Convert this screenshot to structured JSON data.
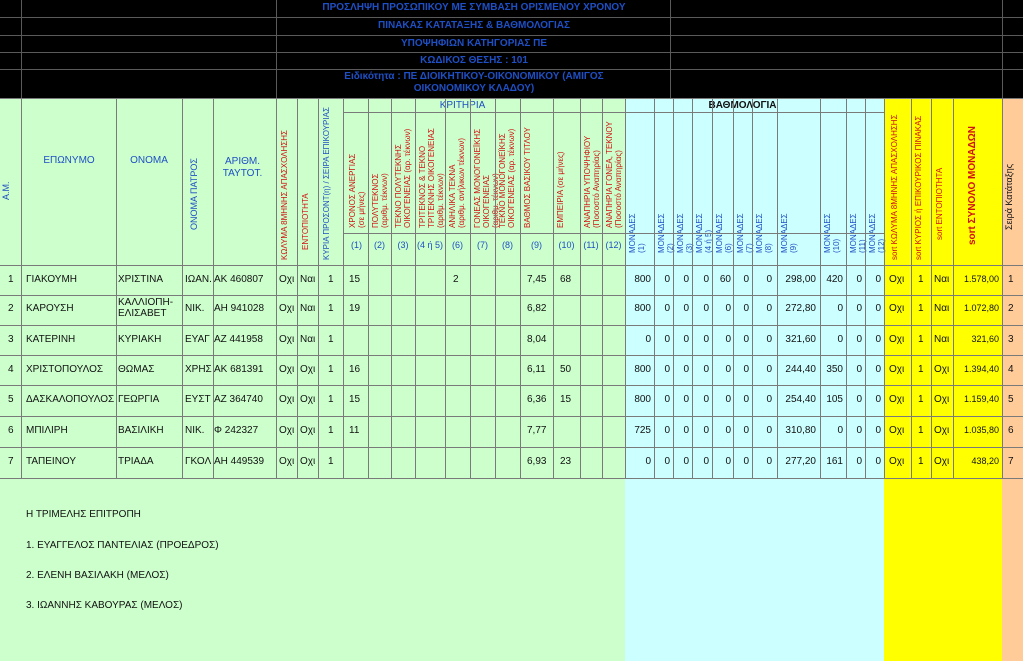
{
  "header": {
    "lines": [
      "ΠΡΟΣΛΗΨΗ ΠΡΟΣΩΠΙΚΟΥ ΜΕ ΣΥΜΒΑΣΗ ΟΡΙΣΜΕΝΟΥ ΧΡΟΝΟΥ",
      "ΠΙΝΑΚΑΣ ΚΑΤΑΤΑΞΗΣ & ΒΑΘΜΟΛΟΓΙΑΣ",
      "ΥΠΟΨΗΦΙΩΝ ΚΑΤΗΓΟΡΙΑΣ ΠΕ",
      "ΚΩΔΙΚΟΣ ΘΕΣΗΣ : 101",
      "Ειδικότητα : ΠΕ ΔΙΟΙΚΗΤΙΚΟΥ-ΟΙΚΟΝΟΜΙΚΟΥ (ΑΜΙΓΟΣ",
      "ΟΙΚΟΝΟΜΙΚΟΥ ΚΛΑΔΟΥ)"
    ]
  },
  "columns": {
    "am": "Α.Μ.",
    "surname": "ΕΠΩΝΥΜΟ",
    "name": "ΟΝΟΜΑ",
    "father": "ΟΝΟΜΑ ΠΑΤΡΟΣ",
    "id_line1": "ΑΡΙΘΜ.",
    "id_line2": "ΤΑΥΤΟΤ.",
    "exclusion": "ΚΩΛΥΜΑ 8ΜΗΝΗΣ ΑΠΑΣΧΟΛΗΣΗΣ",
    "locality": "ΕΝΤΟΠΙΟΤΗΤΑ",
    "main_qual": "ΚΥΡΙΑ ΠΡΟΣΟΝΤ(η) / ΣΕΙΡΑ ΕΠΙΚΟΥΡΙΑΣ",
    "criteria": "ΚΡΙΤΗΡΙΑ",
    "scoring": "ΒΑΘΜΟΛΟΓΙΑ",
    "criteria_cols": [
      "ΧΡΟΝΟΣ ΑΝΕΡΓΙΑΣ\n(σε μήνες)",
      "ΠΟΛΥΤΕΚΝΟΣ\n(αριθμ. τέκνων)",
      "ΤΕΚΝΟ ΠΟΛΥΤΕΚΝΗΣ\nΟΙΚΟΓΕΝΕΙΑΣ (αρ. τέκνων)",
      "ΤΡΙΤΕΚΝΟΣ & ΤΕΚΝΟ\nΤΡΙΤΕΚΝΗΣ ΟΙΚΟΓΕΝΕΙΑΣ\n(αριθμ. τέκνων)",
      "ΑΝΗΛΙΚΑ ΤΕΚΝΑ\n(αριθμ. ανήλικων τέκνων)",
      "ΓΟΝΕΑΣ ΜΟΝΟΓΟΝΕΪΚΗΣ\nΟΙΚΟΓΕΝΕΙΑΣ\n(αριθμ. τέκνων)",
      "ΤΕΚΝΟ ΜΟΝΟΓΟΝΕΪΚΗΣ\nΟΙΚΟΓΕΝΕΙΑΣ (αρ. τέκνων)",
      "ΒΑΘΜΟΣ ΒΑΣΙΚΟΥ ΤΙΤΛΟΥ",
      "ΕΜΠΕΙΡΙΑ (σε μήνες)",
      "ΑΝΑΠΗΡΙΑ ΥΠΟΨΗΦΙΟΥ\n(Ποσοστό Αναπηρίας)",
      "ΑΝΑΠΗΡΙΑ ΓΟΝΕΑ, ΤΕΚΝΟΥ\n(Ποσοστό Αναπηρίας)"
    ],
    "criteria_nums": [
      "(1)",
      "(2)",
      "(3)",
      "(4 ή 5)",
      "(6)",
      "(7)",
      "(8)",
      "(9)",
      "(10)",
      "(11)",
      "(12)"
    ],
    "score_cols": [
      "ΜΟΝΑΔΕΣ\n(1)",
      "ΜΟΝΑΔΕΣ\n(2)",
      "ΜΟΝΑΔΕΣ\n(3)",
      "ΜΟΝΑΔΕΣ\n(4 ή 5)",
      "ΜΟΝΑΔΕΣ\n(6)",
      "ΜΟΝΑΔΕΣ\n(7)",
      "ΜΟΝΑΔΕΣ\n(8)",
      "ΜΟΝΑΔΕΣ\n(9)",
      "ΜΟΝΑΔΕΣ\n(10)",
      "ΜΟΝΑΔΕΣ\n(11)",
      "ΜΟΝΑΔΕΣ\n(12)"
    ],
    "sort_exclusion": "sort ΚΩΛΥΜΑ 8ΜΗΝΗΣ ΑΠΑΣΧΟΛΗΣΗΣ",
    "sort_main": "sort ΚΥΡΙΟΣ ή ΕΠΙΚΟΥΡΙΚΟΣ ΠΙΝΑΚΑΣ",
    "sort_locality": "sort ΕΝΤΟΠΙΟΤΗΤΑ",
    "sort_total": "sort ΣΥΝΟΛΟ ΜΟΝΑΔΩΝ",
    "rank": "Σειρά Κατάταξης"
  },
  "rows": [
    {
      "am": "1",
      "surname": "ΓΙΑΚΟΥΜΗ",
      "name": "ΧΡΙΣΤΙΝΑ",
      "father": "ΙΩΑΝ.",
      "id": "ΑΚ 460807",
      "exclusion": "Οχι",
      "locality": "Ναι",
      "main": "1",
      "c1": "15",
      "c2": "",
      "c3": "",
      "c4": "",
      "c6": "2",
      "c7": "",
      "c8": "",
      "c9": "7,45",
      "c10": "68",
      "c11": "",
      "c12": "",
      "s1": "800",
      "s2": "0",
      "s3": "0",
      "s4": "0",
      "s6": "60",
      "s7": "0",
      "s8": "0",
      "s9": "298,00",
      "s10": "420",
      "s11": "0",
      "s12": "0",
      "x_excl": "Οχι",
      "x_main": "1",
      "x_loc": "Ναι",
      "total": "1.578,00",
      "rank": "1"
    },
    {
      "am": "2",
      "surname": "ΚΑΡΟΥΣΗ",
      "name": "ΚΑΛΛΙΟΠΗ-ΕΛΙΣΑΒΕΤ",
      "father": "ΝΙΚ.",
      "id": "ΑΗ 941028",
      "exclusion": "Οχι",
      "locality": "Ναι",
      "main": "1",
      "c1": "19",
      "c2": "",
      "c3": "",
      "c4": "",
      "c6": "",
      "c7": "",
      "c8": "",
      "c9": "6,82",
      "c10": "",
      "c11": "",
      "c12": "",
      "s1": "800",
      "s2": "0",
      "s3": "0",
      "s4": "0",
      "s6": "0",
      "s7": "0",
      "s8": "0",
      "s9": "272,80",
      "s10": "0",
      "s11": "0",
      "s12": "0",
      "x_excl": "Οχι",
      "x_main": "1",
      "x_loc": "Ναι",
      "total": "1.072,80",
      "rank": "2"
    },
    {
      "am": "3",
      "surname": "ΚΑΤΕΡΙΝΗ",
      "name": "ΚΥΡΙΑΚΗ",
      "father": "ΕΥΑΓ",
      "id": "ΑΖ 441958",
      "exclusion": "Οχι",
      "locality": "Ναι",
      "main": "1",
      "c1": "",
      "c2": "",
      "c3": "",
      "c4": "",
      "c6": "",
      "c7": "",
      "c8": "",
      "c9": "8,04",
      "c10": "",
      "c11": "",
      "c12": "",
      "s1": "0",
      "s2": "0",
      "s3": "0",
      "s4": "0",
      "s6": "0",
      "s7": "0",
      "s8": "0",
      "s9": "321,60",
      "s10": "0",
      "s11": "0",
      "s12": "0",
      "x_excl": "Οχι",
      "x_main": "1",
      "x_loc": "Ναι",
      "total": "321,60",
      "rank": "3"
    },
    {
      "am": "4",
      "surname": "ΧΡΙΣΤΟΠΟΥΛΟΣ",
      "name": "ΘΩΜΑΣ",
      "father": "ΧΡΗΣ",
      "id": "ΑΚ 681391",
      "exclusion": "Οχι",
      "locality": "Οχι",
      "main": "1",
      "c1": "16",
      "c2": "",
      "c3": "",
      "c4": "",
      "c6": "",
      "c7": "",
      "c8": "",
      "c9": "6,11",
      "c10": "50",
      "c11": "",
      "c12": "",
      "s1": "800",
      "s2": "0",
      "s3": "0",
      "s4": "0",
      "s6": "0",
      "s7": "0",
      "s8": "0",
      "s9": "244,40",
      "s10": "350",
      "s11": "0",
      "s12": "0",
      "x_excl": "Οχι",
      "x_main": "1",
      "x_loc": "Οχι",
      "total": "1.394,40",
      "rank": "4"
    },
    {
      "am": "5",
      "surname": "ΔΑΣΚΑΛΟΠΟΥΛΟΣ",
      "name": "ΓΕΩΡΓΙΑ",
      "father": "ΕΥΣΤ",
      "id": "ΑΖ 364740",
      "exclusion": "Οχι",
      "locality": "Οχι",
      "main": "1",
      "c1": "15",
      "c2": "",
      "c3": "",
      "c4": "",
      "c6": "",
      "c7": "",
      "c8": "",
      "c9": "6,36",
      "c10": "15",
      "c11": "",
      "c12": "",
      "s1": "800",
      "s2": "0",
      "s3": "0",
      "s4": "0",
      "s6": "0",
      "s7": "0",
      "s8": "0",
      "s9": "254,40",
      "s10": "105",
      "s11": "0",
      "s12": "0",
      "x_excl": "Οχι",
      "x_main": "1",
      "x_loc": "Οχι",
      "total": "1.159,40",
      "rank": "5"
    },
    {
      "am": "6",
      "surname": "ΜΠΙΛΙΡΗ",
      "name": "ΒΑΣΙΛΙΚΗ",
      "father": "ΝΙΚ.",
      "id": "Φ 242327",
      "exclusion": "Οχι",
      "locality": "Οχι",
      "main": "1",
      "c1": "11",
      "c2": "",
      "c3": "",
      "c4": "",
      "c6": "",
      "c7": "",
      "c8": "",
      "c9": "7,77",
      "c10": "",
      "c11": "",
      "c12": "",
      "s1": "725",
      "s2": "0",
      "s3": "0",
      "s4": "0",
      "s6": "0",
      "s7": "0",
      "s8": "0",
      "s9": "310,80",
      "s10": "0",
      "s11": "0",
      "s12": "0",
      "x_excl": "Οχι",
      "x_main": "1",
      "x_loc": "Οχι",
      "total": "1.035,80",
      "rank": "6"
    },
    {
      "am": "7",
      "surname": "ΤΑΠΕΙΝΟΥ",
      "name": "ΤΡΙΑΔΑ",
      "father": "ΓΚΟΛ",
      "id": "ΑΗ 449539",
      "exclusion": "Οχι",
      "locality": "Οχι",
      "main": "1",
      "c1": "",
      "c2": "",
      "c3": "",
      "c4": "",
      "c6": "",
      "c7": "",
      "c8": "",
      "c9": "6,93",
      "c10": "23",
      "c11": "",
      "c12": "",
      "s1": "0",
      "s2": "0",
      "s3": "0",
      "s4": "0",
      "s6": "0",
      "s7": "0",
      "s8": "0",
      "s9": "277,20",
      "s10": "161",
      "s11": "0",
      "s12": "0",
      "x_excl": "Οχι",
      "x_main": "1",
      "x_loc": "Οχι",
      "total": "438,20",
      "rank": "7"
    }
  ],
  "committee": {
    "title": "Η ΤΡΙΜΕΛΗΣ ΕΠΙΤΡΟΠΗ",
    "members": [
      "1. ΕΥΑΓΓΕΛΟΣ ΠΑΝΤΕΛΙΑΣ (ΠΡΟΕΔΡΟΣ)",
      "2. ΕΛΕΝΗ ΒΑΣΙΛΑΚΗ (ΜΕΛΟΣ)",
      "3. ΙΩΑΝΝΗΣ ΚΑΒΟΥΡΑΣ (ΜΕΛΟΣ)"
    ]
  },
  "colors": {
    "green": "#ccffcc",
    "cyan": "#ccffff",
    "yellow": "#ffff00",
    "peach": "#ffcc99",
    "header_blue": "#1f4fc4",
    "header_red": "#d01010"
  }
}
